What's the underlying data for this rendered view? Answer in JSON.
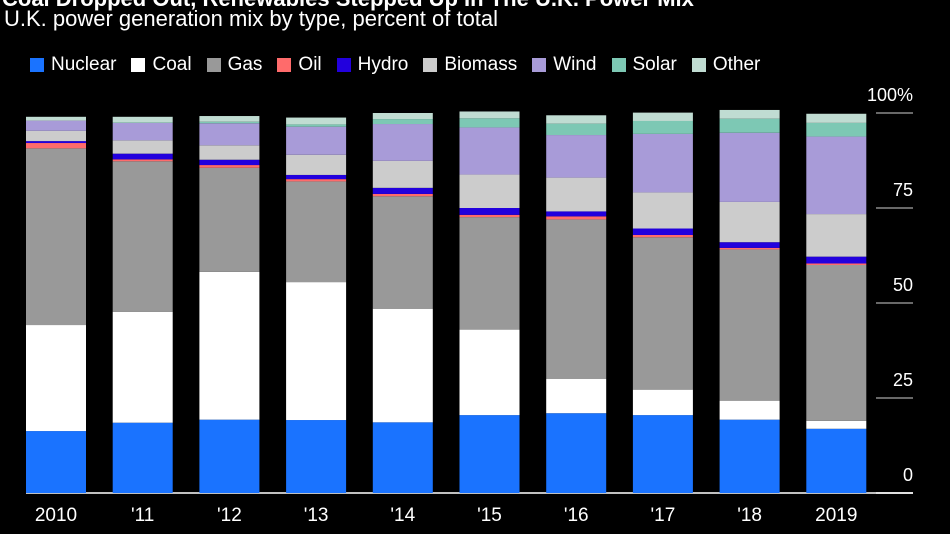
{
  "header": {
    "title": "Coal Dropped Out, Renewables Stepped Up In The U.K. Power Mix",
    "subtitle": "U.K. power generation mix by type, percent of total"
  },
  "chart_data": {
    "type": "stacked-bar",
    "title": "U.K. power generation mix by type, percent of total",
    "categories": [
      "2010",
      "'11",
      "'12",
      "'13",
      "'14",
      "'15",
      "'16",
      "'17",
      "'18",
      "2019"
    ],
    "y_ticks": [
      "100%",
      "75",
      "50",
      "25",
      "0"
    ],
    "y_tick_values": [
      100,
      75,
      50,
      25,
      0
    ],
    "ylim": [
      0,
      100
    ],
    "legend_position": "top",
    "series": [
      {
        "name": "Nuclear",
        "color": "#1a73ff",
        "values": [
          16.3,
          18.5,
          19.3,
          19.2,
          18.6,
          20.5,
          21.0,
          20.5,
          19.3,
          16.9
        ]
      },
      {
        "name": "Coal",
        "color": "#ffffff",
        "values": [
          27.9,
          29.2,
          38.9,
          36.3,
          29.9,
          22.5,
          9.0,
          6.7,
          5.0,
          2.1
        ]
      },
      {
        "name": "Gas",
        "color": "#999999",
        "values": [
          46.5,
          39.6,
          27.4,
          26.5,
          29.6,
          29.6,
          42.0,
          40.1,
          39.8,
          41.0
        ]
      },
      {
        "name": "Oil",
        "color": "#ff6b6b",
        "values": [
          1.4,
          0.5,
          0.7,
          0.6,
          0.6,
          0.6,
          0.8,
          0.6,
          0.4,
          0.4
        ]
      },
      {
        "name": "Hydro",
        "color": "#2200dd",
        "values": [
          0.5,
          1.5,
          1.4,
          1.1,
          1.6,
          1.8,
          1.3,
          1.7,
          1.5,
          1.8
        ]
      },
      {
        "name": "Biomass",
        "color": "#cccccc",
        "values": [
          2.7,
          3.5,
          3.8,
          5.3,
          7.1,
          8.8,
          8.9,
          9.5,
          10.6,
          11.2
        ]
      },
      {
        "name": "Wind",
        "color": "#a89bd8",
        "values": [
          2.7,
          4.6,
          5.8,
          7.4,
          9.7,
          12.4,
          11.2,
          15.4,
          18.2,
          20.4
        ]
      },
      {
        "name": "Solar",
        "color": "#7dc8b4",
        "values": [
          0.0,
          0.1,
          0.4,
          0.6,
          1.3,
          2.4,
          3.0,
          3.4,
          3.7,
          3.6
        ]
      },
      {
        "name": "Other",
        "color": "#c0dcd2",
        "values": [
          1.0,
          1.5,
          1.5,
          1.8,
          1.6,
          1.8,
          2.2,
          2.2,
          2.3,
          2.4
        ]
      }
    ]
  }
}
